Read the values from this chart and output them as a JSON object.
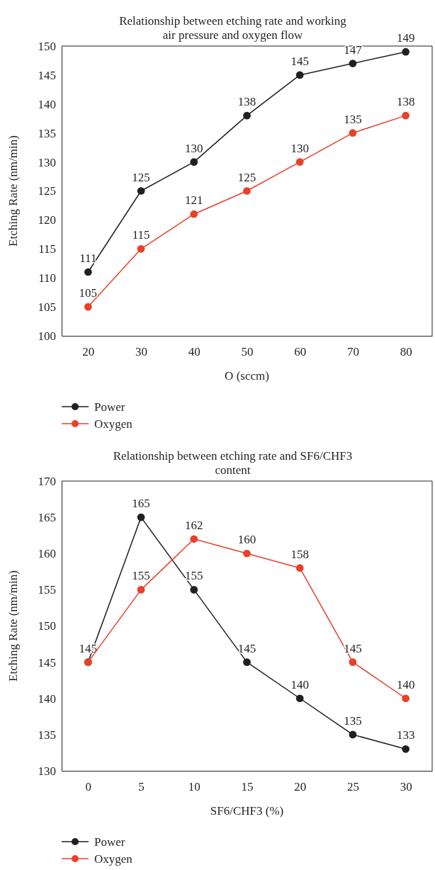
{
  "chart_data": [
    {
      "type": "line",
      "title": "Relationship between etching rate and working air pressure and oxygen flow",
      "xlabel": "O (sccm)",
      "ylabel": "Etching Rate (nm/min)",
      "x": [
        20,
        30,
        40,
        50,
        60,
        70,
        80
      ],
      "xlim": [
        15,
        85
      ],
      "xticks": [
        20,
        30,
        40,
        50,
        60,
        70,
        80
      ],
      "ylim": [
        100,
        150
      ],
      "yticks": [
        100,
        105,
        110,
        115,
        120,
        125,
        130,
        135,
        140,
        145,
        150
      ],
      "marker": "circle",
      "data_labels": true,
      "legend": "bottom left",
      "series": [
        {
          "name": "Power",
          "color": "#231f20",
          "values": [
            111,
            125,
            130,
            138,
            145,
            147,
            149
          ]
        },
        {
          "name": "Oxygen",
          "color": "#e8412a",
          "values": [
            105,
            115,
            121,
            125,
            130,
            135,
            138
          ]
        }
      ]
    },
    {
      "type": "line",
      "title": "Relationship between etching rate and SF6/CHF3 content",
      "xlabel": "SF6/CHF3 (%)",
      "ylabel": "Etching Rate (nm/min)",
      "x": [
        0,
        5,
        10,
        15,
        20,
        25,
        30
      ],
      "xlim": [
        -2.5,
        32.5
      ],
      "xticks": [
        0,
        5,
        10,
        15,
        20,
        25,
        30
      ],
      "ylim": [
        130,
        170
      ],
      "yticks": [
        130,
        135,
        140,
        145,
        150,
        155,
        160,
        165,
        170
      ],
      "marker": "circle",
      "legend": "bottom left",
      "series": [
        {
          "name": "Power",
          "color": "#231f20",
          "values": [
            145,
            165,
            155,
            145,
            140,
            135,
            133
          ],
          "value_labels": [
            "145",
            "165",
            "155",
            "145",
            "140",
            "135",
            "133"
          ]
        },
        {
          "name": "Oxygen",
          "color": "#e8412a",
          "values": [
            145,
            155,
            162,
            160,
            158,
            145,
            140
          ],
          "value_labels": [
            null,
            "155",
            "162",
            "160",
            "158",
            "145",
            "140"
          ]
        }
      ]
    }
  ]
}
